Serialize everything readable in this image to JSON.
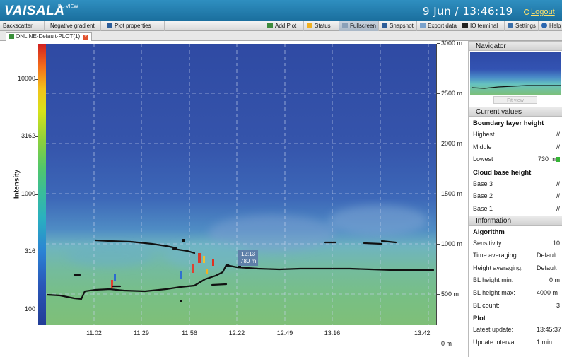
{
  "header": {
    "logo": "VAISALA",
    "product": "BL-VIEW",
    "datetime": "9 Jun / 13:46:19",
    "logout": "Logout"
  },
  "toolbar": {
    "backscatter": "Backscatter",
    "negative_gradient": "Negative gradient",
    "plot_properties": "Plot properties",
    "add_plot": "Add Plot",
    "status": "Status",
    "fullscreen": "Fullscreen",
    "snapshot": "Snapshot",
    "export_data": "Export data",
    "io_terminal": "IO terminal",
    "settings": "Settings",
    "help": "Help"
  },
  "tab": {
    "label": "ONLINE-Default-PLOT(1)"
  },
  "intensity_axis": {
    "label": "Intensity",
    "ticks": [
      "10000",
      "3162",
      "1000",
      "316",
      "100"
    ]
  },
  "height_axis": {
    "ticks": [
      "3000 m",
      "2500 m",
      "2000 m",
      "1500 m",
      "1000 m",
      "500 m",
      "0 m"
    ]
  },
  "time_axis": {
    "ticks": [
      "11:02",
      "11:29",
      "11:56",
      "12:22",
      "12:49",
      "13:16",
      "13:42"
    ]
  },
  "cursor_marker": {
    "time": "12:13",
    "height": "780 m"
  },
  "navigator": {
    "title": "Navigator",
    "fit_view": "Fit view"
  },
  "current_values": {
    "title": "Current values",
    "blh_title": "Boundary layer height",
    "highest_label": "Highest",
    "highest_value": "//",
    "middle_label": "Middle",
    "middle_value": "//",
    "lowest_label": "Lowest",
    "lowest_value": "730 m",
    "cbh_title": "Cloud base height",
    "base3_label": "Base 3",
    "base3_value": "//",
    "base2_label": "Base 2",
    "base2_value": "//",
    "base1_label": "Base 1",
    "base1_value": "//"
  },
  "information": {
    "title": "Information",
    "algorithm_title": "Algorithm",
    "sensitivity_label": "Sensitivity:",
    "sensitivity_value": "10",
    "time_avg_label": "Time averaging:",
    "time_avg_value": "Default",
    "height_avg_label": "Height averaging:",
    "height_avg_value": "Default",
    "bl_min_label": "BL height min:",
    "bl_min_value": "0 m",
    "bl_max_label": "BL height max:",
    "bl_max_value": "4000 m",
    "bl_count_label": "BL count:",
    "bl_count_value": "3",
    "plot_title": "Plot",
    "latest_update_label": "Latest update:",
    "latest_update_value": "13:45:37",
    "update_interval_label": "Update interval:",
    "update_interval_value": "1 min"
  },
  "colors": {
    "header_blue": "#1a6e9d",
    "logout_yellow": "#ffe26a",
    "layer_marker": "#111111",
    "plot_top": "#2f4aa3",
    "plot_bottom": "#7fbf78"
  }
}
